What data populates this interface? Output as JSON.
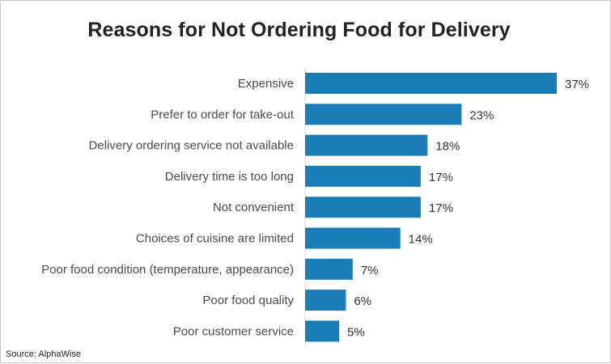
{
  "chart_data": {
    "type": "bar",
    "orientation": "horizontal",
    "title": "Reasons for Not Ordering Food for Delivery",
    "categories": [
      "Expensive",
      "Prefer to order for take-out",
      "Delivery ordering service not available",
      "Delivery time is too long",
      "Not convenient",
      "Choices of cuisine are limited",
      "Poor food condition (temperature, appearance)",
      "Poor food quality",
      "Poor customer service"
    ],
    "values": [
      37,
      23,
      18,
      17,
      17,
      14,
      7,
      6,
      5
    ],
    "value_labels": [
      "37%",
      "23%",
      "18%",
      "17%",
      "17%",
      "14%",
      "7%",
      "6%",
      "5%"
    ],
    "xlim": [
      0,
      37
    ],
    "grid": false,
    "bar_color": "#1a7db8"
  },
  "source": "Source: AlphaWise"
}
